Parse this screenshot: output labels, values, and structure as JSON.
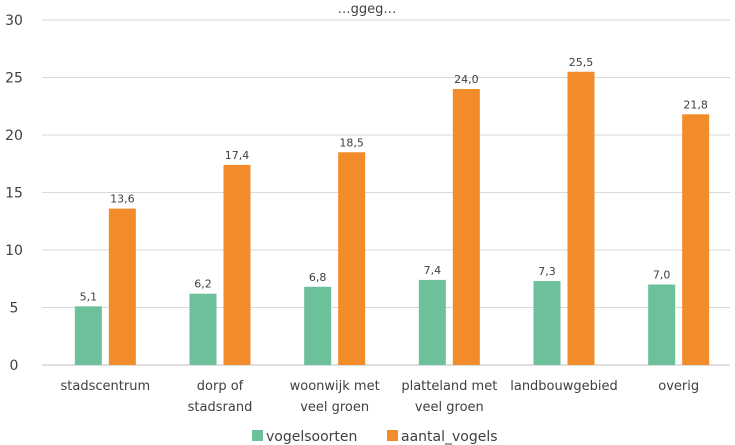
{
  "chart_data": {
    "type": "bar",
    "title": "…ggeg…",
    "categories": [
      [
        "stadscentrum"
      ],
      [
        "dorp of",
        "stadsrand"
      ],
      [
        "woonwijk met",
        "veel groen"
      ],
      [
        "platteland met",
        "veel groen"
      ],
      [
        "landbouwgebied"
      ],
      [
        "overig"
      ]
    ],
    "series": [
      {
        "name": "vogelsoorten",
        "values": [
          5.1,
          6.2,
          6.8,
          7.4,
          7.3,
          7.0
        ],
        "labels": [
          "5,1",
          "6,2",
          "6,8",
          "7,4",
          "7,3",
          "7,0"
        ],
        "color": "#6cc09a"
      },
      {
        "name": "aantal_vogels",
        "values": [
          13.6,
          17.4,
          18.5,
          24.0,
          25.5,
          21.8
        ],
        "labels": [
          "13,6",
          "17,4",
          "18,5",
          "24,0",
          "25,5",
          "21,8"
        ],
        "color": "#f28b2a"
      }
    ],
    "ylim": [
      0,
      30
    ],
    "yticks": [
      0,
      5,
      10,
      15,
      20,
      25,
      30
    ],
    "grid": true,
    "legend": "bottom"
  }
}
